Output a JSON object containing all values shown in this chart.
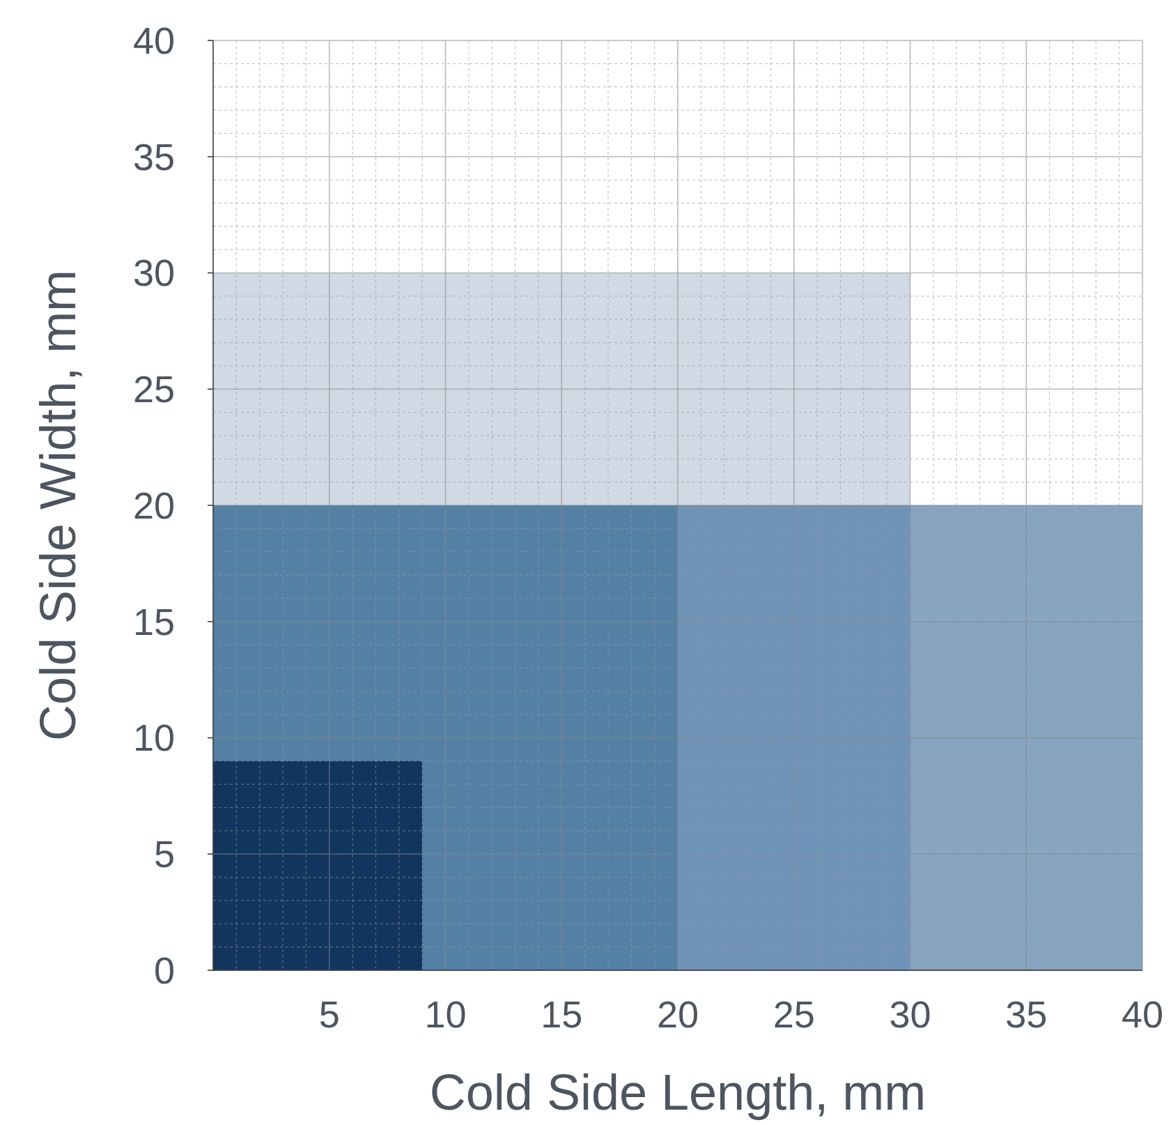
{
  "chart_data": {
    "type": "area",
    "xlabel": "Cold Side Length, mm",
    "ylabel": "Cold Side Width, mm",
    "xlim": [
      0,
      40
    ],
    "ylim": [
      0,
      40
    ],
    "xticks": [
      5,
      10,
      15,
      20,
      25,
      30,
      35,
      40
    ],
    "yticks": [
      0,
      5,
      10,
      15,
      20,
      25,
      30,
      35,
      40
    ],
    "grid": true,
    "series": [
      {
        "x": [
          0,
          30
        ],
        "values": [
          30,
          30
        ],
        "color": "#d0dae4"
      },
      {
        "x": [
          0,
          40
        ],
        "values": [
          20,
          20
        ],
        "color": "#87a5c1"
      },
      {
        "x": [
          0,
          30
        ],
        "values": [
          20,
          20
        ],
        "color": "#7093b8"
      },
      {
        "x": [
          0,
          20
        ],
        "values": [
          20,
          20
        ],
        "color": "#5580a6"
      },
      {
        "x": [
          0,
          9
        ],
        "values": [
          9,
          9
        ],
        "color": "#12355f"
      }
    ]
  }
}
